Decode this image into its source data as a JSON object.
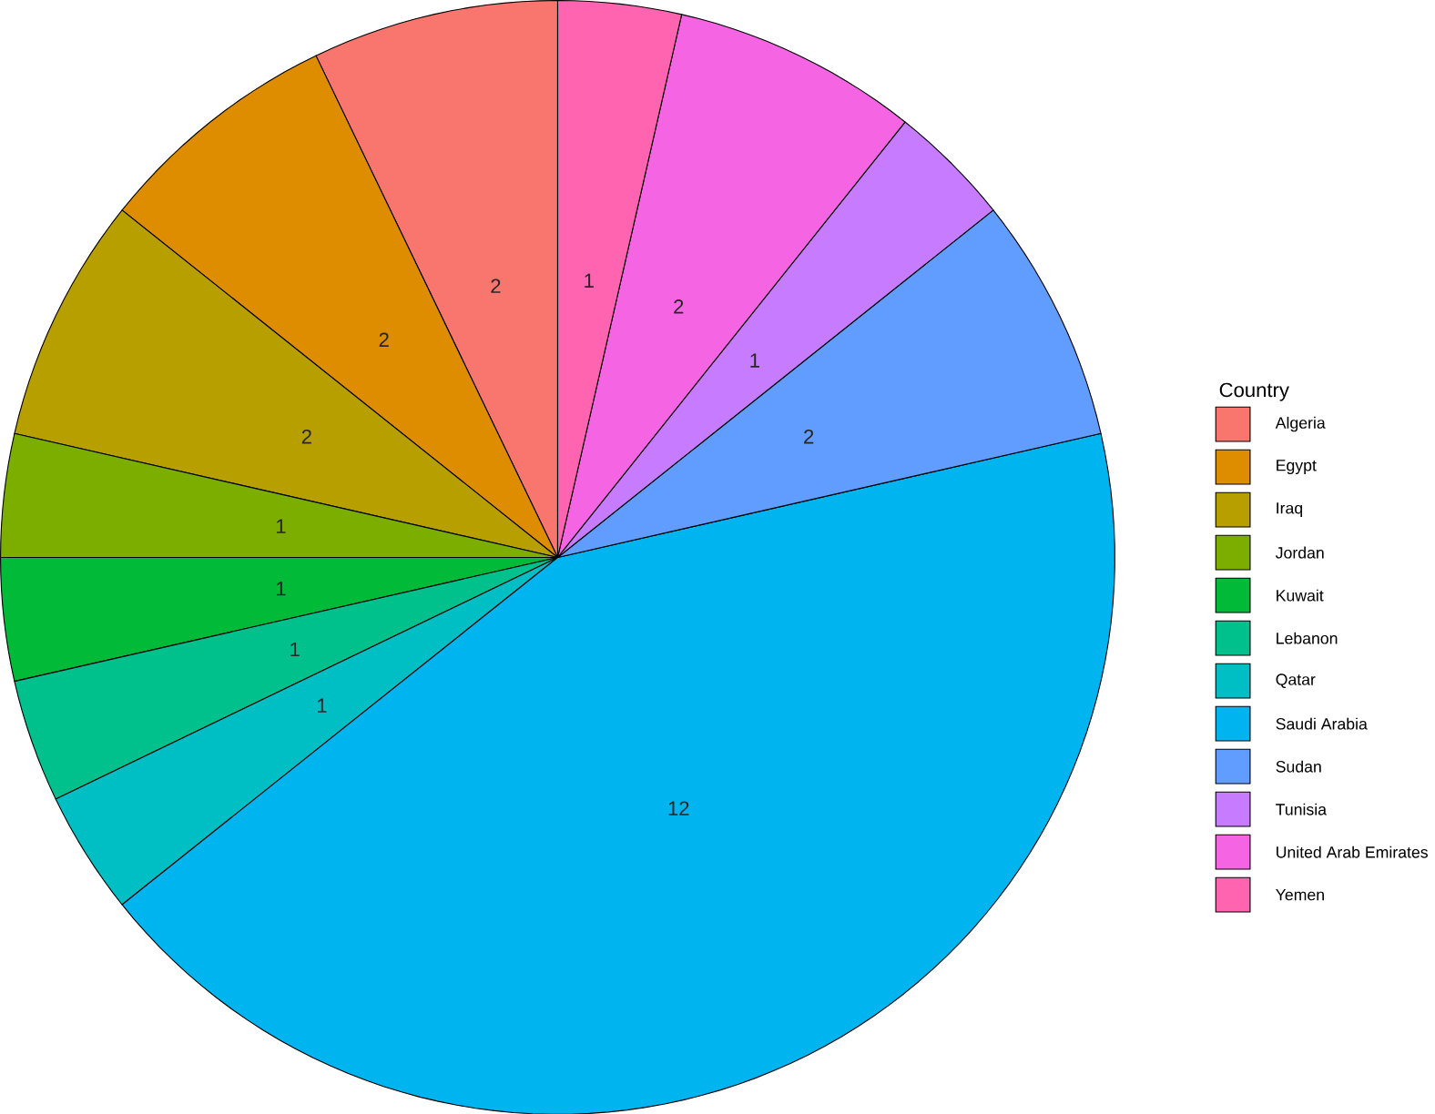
{
  "chart_data": {
    "type": "pie",
    "legend_title": "Country",
    "legend": "right",
    "data_labels": true,
    "categories": [
      "Algeria",
      "Egypt",
      "Iraq",
      "Jordan",
      "Kuwait",
      "Lebanon",
      "Qatar",
      "Saudi Arabia",
      "Sudan",
      "Tunisia",
      "United Arab Emirates",
      "Yemen"
    ],
    "values": [
      2,
      2,
      2,
      1,
      1,
      1,
      1,
      12,
      2,
      1,
      2,
      1
    ],
    "colors": [
      "#F8766D",
      "#DE8C00",
      "#B79F00",
      "#7CAE00",
      "#00BA38",
      "#00C08B",
      "#00BFC4",
      "#00B4F0",
      "#619CFF",
      "#C77CFF",
      "#F564E3",
      "#FF64B0"
    ]
  }
}
